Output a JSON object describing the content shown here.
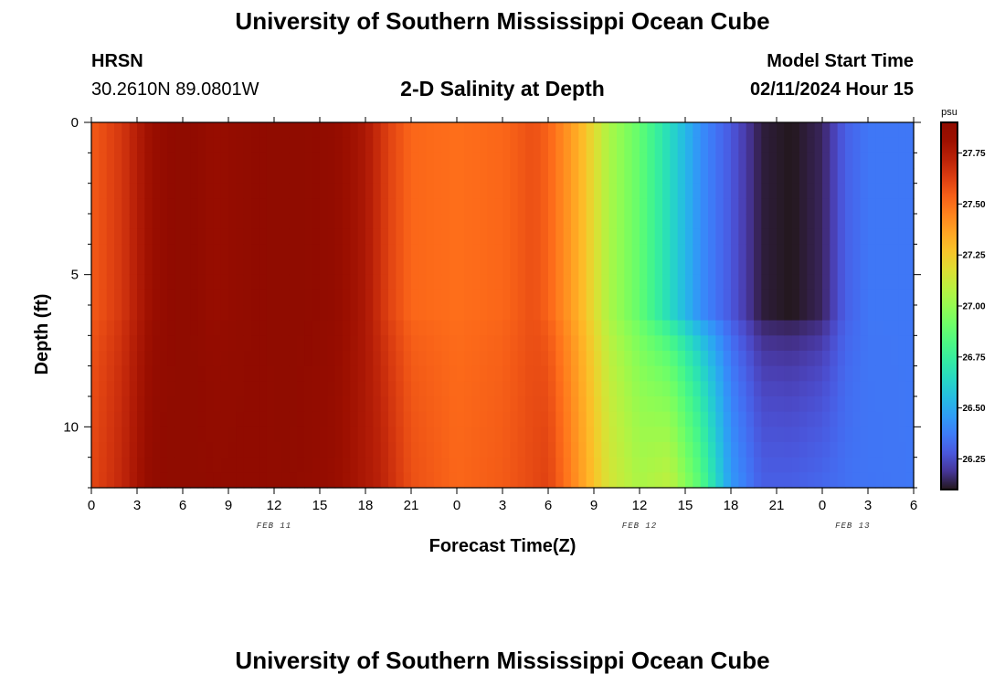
{
  "header": {
    "title": "University of Southern Mississippi Ocean Cube",
    "station": "HRSN",
    "coordinates": "30.2610N  89.0801W",
    "model_start_label": "Model Start Time",
    "model_start_value": "02/11/2024 Hour 15",
    "footer_title": "University of Southern Mississippi Ocean Cube"
  },
  "chart_data": {
    "type": "heatmap",
    "title": "2-D Salinity at Depth",
    "xlabel": "Forecast Time(Z)",
    "ylabel": "Depth (ft)",
    "x_tick_labels": [
      "0",
      "3",
      "6",
      "9",
      "12",
      "15",
      "18",
      "21",
      "0",
      "3",
      "6",
      "9",
      "12",
      "15",
      "18",
      "21",
      "0",
      "3",
      "6"
    ],
    "x_range_hours": [
      0,
      54
    ],
    "date_labels": [
      {
        "label": "FEB 11",
        "hour": 12
      },
      {
        "label": "FEB 12",
        "hour": 36
      },
      {
        "label": "FEB 13",
        "hour": 50
      }
    ],
    "y_ticks": [
      0,
      5,
      10
    ],
    "y_tick_labels": [
      "0",
      "5",
      "10"
    ],
    "ylim": [
      0,
      12
    ],
    "y_inverted": true,
    "colorbar": {
      "unit": "psu",
      "range": [
        26.1,
        27.9
      ],
      "ticks": [
        26.25,
        26.5,
        26.75,
        27.0,
        27.25,
        27.5,
        27.75
      ],
      "tick_labels": [
        "26.25",
        "26.50",
        "26.75",
        "27.00",
        "27.25",
        "27.50",
        "27.75"
      ],
      "colormap": "turbo"
    },
    "surface_salinity_profile": [
      {
        "hour": 0,
        "psu": 27.55
      },
      {
        "hour": 2,
        "psu": 27.65
      },
      {
        "hour": 4,
        "psu": 27.82
      },
      {
        "hour": 6,
        "psu": 27.9
      },
      {
        "hour": 8,
        "psu": 27.83
      },
      {
        "hour": 10,
        "psu": 27.86
      },
      {
        "hour": 13,
        "psu": 27.9
      },
      {
        "hour": 16,
        "psu": 27.85
      },
      {
        "hour": 18,
        "psu": 27.76
      },
      {
        "hour": 19.5,
        "psu": 27.62
      },
      {
        "hour": 21,
        "psu": 27.52
      },
      {
        "hour": 24,
        "psu": 27.5
      },
      {
        "hour": 27,
        "psu": 27.52
      },
      {
        "hour": 29,
        "psu": 27.58
      },
      {
        "hour": 30,
        "psu": 27.53
      },
      {
        "hour": 32,
        "psu": 27.33
      },
      {
        "hour": 34,
        "psu": 27.05
      },
      {
        "hour": 36,
        "psu": 26.88
      },
      {
        "hour": 38,
        "psu": 26.65
      },
      {
        "hour": 40,
        "psu": 26.42
      },
      {
        "hour": 42,
        "psu": 26.28
      },
      {
        "hour": 44,
        "psu": 26.12
      },
      {
        "hour": 46,
        "psu": 26.1
      },
      {
        "hour": 48,
        "psu": 26.14
      },
      {
        "hour": 49.5,
        "psu": 26.3
      },
      {
        "hour": 51,
        "psu": 26.36
      },
      {
        "hour": 54,
        "psu": 26.36
      }
    ],
    "bottom_salinity_profile": [
      {
        "hour": 0,
        "psu": 27.6
      },
      {
        "hour": 2,
        "psu": 27.7
      },
      {
        "hour": 4,
        "psu": 27.86
      },
      {
        "hour": 6,
        "psu": 27.9
      },
      {
        "hour": 8,
        "psu": 27.87
      },
      {
        "hour": 13,
        "psu": 27.88
      },
      {
        "hour": 16,
        "psu": 27.83
      },
      {
        "hour": 19,
        "psu": 27.72
      },
      {
        "hour": 21,
        "psu": 27.58
      },
      {
        "hour": 24,
        "psu": 27.52
      },
      {
        "hour": 27,
        "psu": 27.55
      },
      {
        "hour": 30,
        "psu": 27.62
      },
      {
        "hour": 32,
        "psu": 27.4
      },
      {
        "hour": 34,
        "psu": 27.15
      },
      {
        "hour": 36,
        "psu": 27.05
      },
      {
        "hour": 38,
        "psu": 27.1
      },
      {
        "hour": 40,
        "psu": 26.85
      },
      {
        "hour": 42,
        "psu": 26.45
      },
      {
        "hour": 44,
        "psu": 26.3
      },
      {
        "hour": 46,
        "psu": 26.3
      },
      {
        "hour": 48,
        "psu": 26.32
      },
      {
        "hour": 50,
        "psu": 26.35
      },
      {
        "hour": 54,
        "psu": 26.36
      }
    ]
  }
}
